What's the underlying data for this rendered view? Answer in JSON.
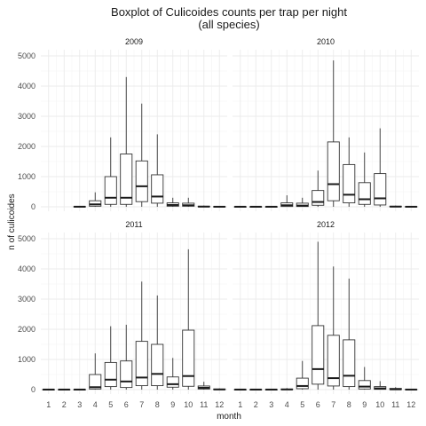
{
  "chart_data": {
    "type": "boxplot",
    "title": "Boxplot of Culicoides counts per trap per night",
    "subtitle": "(all species)",
    "xlabel": "month",
    "ylabel": "n of culicoides",
    "categories": [
      "1",
      "2",
      "3",
      "4",
      "5",
      "6",
      "7",
      "8",
      "9",
      "10",
      "11",
      "12"
    ],
    "ylim": [
      0,
      5000
    ],
    "yticks": [
      0,
      1000,
      2000,
      3000,
      4000,
      5000
    ],
    "grid": true,
    "panels": [
      {
        "label": "2009",
        "boxes": [
          {
            "month": 3,
            "min": 0,
            "q1": 0,
            "median": 3,
            "q3": 10,
            "max": 20
          },
          {
            "month": 4,
            "min": 0,
            "q1": 20,
            "median": 80,
            "q3": 200,
            "max": 480
          },
          {
            "month": 5,
            "min": 0,
            "q1": 80,
            "median": 300,
            "q3": 1000,
            "max": 2300
          },
          {
            "month": 6,
            "min": 0,
            "q1": 80,
            "median": 300,
            "q3": 1750,
            "max": 4300
          },
          {
            "month": 7,
            "min": 0,
            "q1": 170,
            "median": 680,
            "q3": 1520,
            "max": 3420
          },
          {
            "month": 8,
            "min": 0,
            "q1": 120,
            "median": 340,
            "q3": 1060,
            "max": 2400
          },
          {
            "month": 9,
            "min": 0,
            "q1": 20,
            "median": 60,
            "q3": 130,
            "max": 300
          },
          {
            "month": 10,
            "min": 0,
            "q1": 20,
            "median": 50,
            "q3": 120,
            "max": 300
          },
          {
            "month": 11,
            "min": 0,
            "q1": 0,
            "median": 5,
            "q3": 20,
            "max": 40
          },
          {
            "month": 12,
            "min": 0,
            "q1": 0,
            "median": 2,
            "q3": 10,
            "max": 20
          }
        ]
      },
      {
        "label": "2010",
        "boxes": [
          {
            "month": 1,
            "min": 0,
            "q1": 0,
            "median": 2,
            "q3": 5,
            "max": 10
          },
          {
            "month": 2,
            "min": 0,
            "q1": 0,
            "median": 2,
            "q3": 5,
            "max": 10
          },
          {
            "month": 3,
            "min": 0,
            "q1": 0,
            "median": 2,
            "q3": 5,
            "max": 10
          },
          {
            "month": 4,
            "min": 0,
            "q1": 10,
            "median": 50,
            "q3": 130,
            "max": 380
          },
          {
            "month": 5,
            "min": 0,
            "q1": 10,
            "median": 40,
            "q3": 120,
            "max": 300
          },
          {
            "month": 6,
            "min": 0,
            "q1": 50,
            "median": 160,
            "q3": 540,
            "max": 1200
          },
          {
            "month": 7,
            "min": 0,
            "q1": 200,
            "median": 750,
            "q3": 2150,
            "max": 4850
          },
          {
            "month": 8,
            "min": 0,
            "q1": 130,
            "median": 400,
            "q3": 1400,
            "max": 2300
          },
          {
            "month": 9,
            "min": 0,
            "q1": 80,
            "median": 250,
            "q3": 800,
            "max": 1800
          },
          {
            "month": 10,
            "min": 0,
            "q1": 60,
            "median": 280,
            "q3": 1100,
            "max": 2600
          },
          {
            "month": 11,
            "min": 0,
            "q1": 0,
            "median": 5,
            "q3": 20,
            "max": 40
          },
          {
            "month": 12,
            "min": 0,
            "q1": 0,
            "median": 2,
            "q3": 10,
            "max": 20
          }
        ]
      },
      {
        "label": "2011",
        "boxes": [
          {
            "month": 1,
            "min": 0,
            "q1": 0,
            "median": 2,
            "q3": 5,
            "max": 10
          },
          {
            "month": 2,
            "min": 0,
            "q1": 0,
            "median": 2,
            "q3": 5,
            "max": 10
          },
          {
            "month": 3,
            "min": 0,
            "q1": 0,
            "median": 2,
            "q3": 5,
            "max": 10
          },
          {
            "month": 4,
            "min": 0,
            "q1": 20,
            "median": 80,
            "q3": 500,
            "max": 1200
          },
          {
            "month": 5,
            "min": 0,
            "q1": 100,
            "median": 330,
            "q3": 900,
            "max": 2100
          },
          {
            "month": 6,
            "min": 0,
            "q1": 70,
            "median": 270,
            "q3": 950,
            "max": 2150
          },
          {
            "month": 7,
            "min": 0,
            "q1": 130,
            "median": 400,
            "q3": 1600,
            "max": 3580
          },
          {
            "month": 8,
            "min": 0,
            "q1": 130,
            "median": 520,
            "q3": 1500,
            "max": 3120
          },
          {
            "month": 9,
            "min": 0,
            "q1": 80,
            "median": 180,
            "q3": 420,
            "max": 1050
          },
          {
            "month": 10,
            "min": 0,
            "q1": 110,
            "median": 450,
            "q3": 1970,
            "max": 4650
          },
          {
            "month": 11,
            "min": 0,
            "q1": 20,
            "median": 60,
            "q3": 120,
            "max": 260
          },
          {
            "month": 12,
            "min": 0,
            "q1": 0,
            "median": 5,
            "q3": 20,
            "max": 40
          }
        ]
      },
      {
        "label": "2012",
        "boxes": [
          {
            "month": 1,
            "min": 0,
            "q1": 0,
            "median": 2,
            "q3": 5,
            "max": 10
          },
          {
            "month": 2,
            "min": 0,
            "q1": 0,
            "median": 2,
            "q3": 5,
            "max": 10
          },
          {
            "month": 3,
            "min": 0,
            "q1": 0,
            "median": 2,
            "q3": 5,
            "max": 10
          },
          {
            "month": 4,
            "min": 0,
            "q1": 0,
            "median": 5,
            "q3": 20,
            "max": 50
          },
          {
            "month": 5,
            "min": 0,
            "q1": 30,
            "median": 120,
            "q3": 380,
            "max": 950
          },
          {
            "month": 6,
            "min": 0,
            "q1": 180,
            "median": 680,
            "q3": 2120,
            "max": 4900
          },
          {
            "month": 7,
            "min": 0,
            "q1": 120,
            "median": 380,
            "q3": 1800,
            "max": 4080
          },
          {
            "month": 8,
            "min": 0,
            "q1": 100,
            "median": 460,
            "q3": 1650,
            "max": 3680
          },
          {
            "month": 9,
            "min": 0,
            "q1": 20,
            "median": 100,
            "q3": 300,
            "max": 750
          },
          {
            "month": 10,
            "min": 0,
            "q1": 10,
            "median": 40,
            "q3": 100,
            "max": 280
          },
          {
            "month": 11,
            "min": 0,
            "q1": 0,
            "median": 10,
            "q3": 40,
            "max": 80
          },
          {
            "month": 12,
            "min": 0,
            "q1": 0,
            "median": 2,
            "q3": 10,
            "max": 20
          }
        ]
      }
    ]
  }
}
